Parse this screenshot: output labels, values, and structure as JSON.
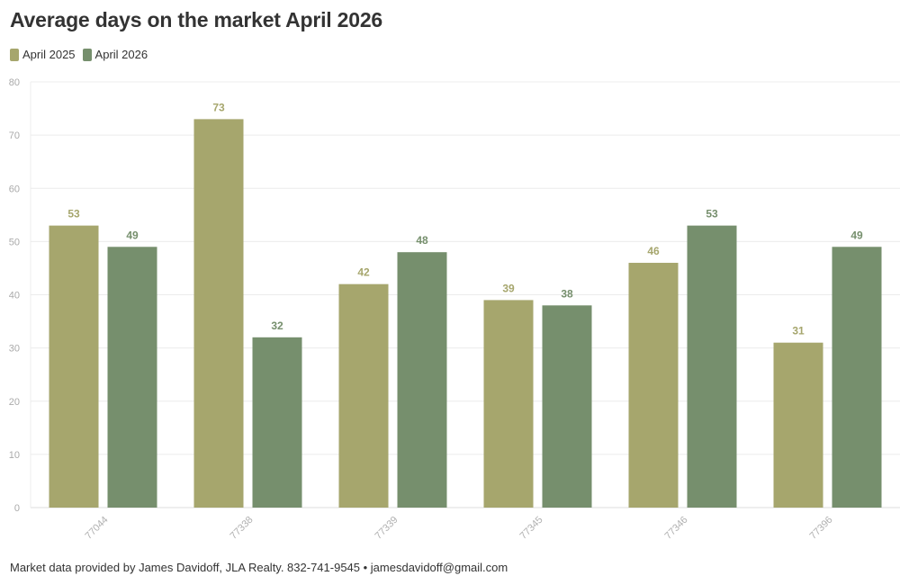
{
  "title": "Average days on the market April 2026",
  "legend": [
    {
      "label": "April 2025",
      "color": "#a6a66d"
    },
    {
      "label": "April 2026",
      "color": "#768f6d"
    }
  ],
  "footer": "Market data provided by James Davidoff, JLA Realty. 832-741-9545 • jamesdavidoff@gmail.com",
  "chart_data": {
    "type": "bar",
    "title": "Average days on the market April 2026",
    "xlabel": "",
    "ylabel": "",
    "categories": [
      "77044",
      "77338",
      "77339",
      "77345",
      "77346",
      "77396"
    ],
    "series": [
      {
        "name": "April 2025",
        "values": [
          53,
          73,
          42,
          39,
          46,
          31
        ],
        "color": "#a6a66d"
      },
      {
        "name": "April 2026",
        "values": [
          49,
          32,
          48,
          38,
          53,
          49
        ],
        "color": "#768f6d"
      }
    ],
    "ylim": [
      0,
      80
    ],
    "yticks": [
      0,
      10,
      20,
      30,
      40,
      50,
      60,
      70,
      80
    ],
    "grid": true,
    "legend_position": "top-left",
    "data_labels": true
  }
}
